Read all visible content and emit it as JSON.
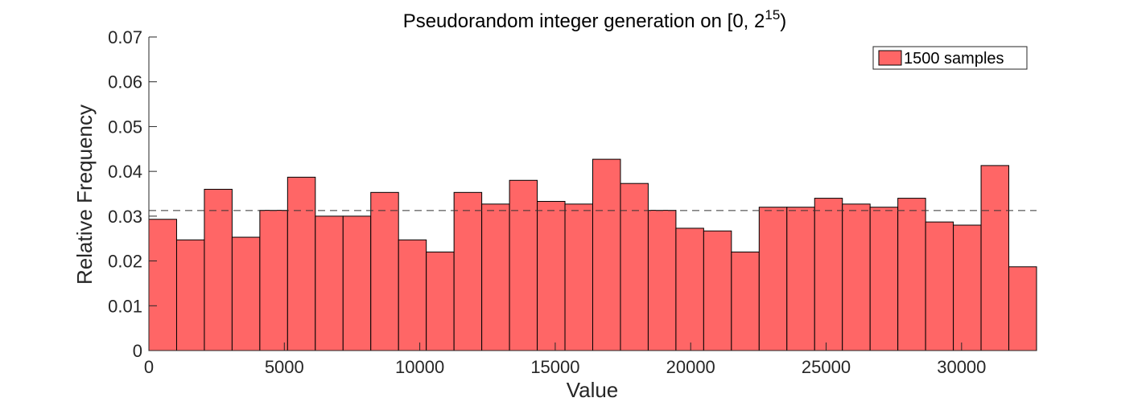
{
  "chart_data": {
    "type": "bar",
    "title": "Pseudorandom integer generation on [0, 2",
    "title_superscript": "15",
    "title_suffix": ")",
    "xlabel": "Value",
    "ylabel": "Relative Frequency",
    "xlim": [
      0,
      32768
    ],
    "ylim": [
      0,
      0.07
    ],
    "bin_width": 1024,
    "x_ticks": [
      0,
      5000,
      10000,
      15000,
      20000,
      25000,
      30000
    ],
    "y_ticks": [
      0,
      0.01,
      0.02,
      0.03,
      0.04,
      0.05,
      0.06,
      0.07
    ],
    "x_tick_labels": [
      "0",
      "5000",
      "10000",
      "15000",
      "20000",
      "25000",
      "30000"
    ],
    "y_tick_labels": [
      "0",
      "0.01",
      "0.02",
      "0.03",
      "0.04",
      "0.05",
      "0.06",
      "0.07"
    ],
    "reference_line": 0.03125,
    "grid": false,
    "legend_position": "top-right",
    "series": [
      {
        "name": "1500 samples",
        "color": "#ff6666",
        "values": [
          0.0293,
          0.0247,
          0.036,
          0.0253,
          0.0313,
          0.0387,
          0.03,
          0.03,
          0.0353,
          0.0247,
          0.022,
          0.0353,
          0.0327,
          0.038,
          0.0333,
          0.0327,
          0.0427,
          0.0373,
          0.0313,
          0.0273,
          0.0267,
          0.022,
          0.032,
          0.032,
          0.034,
          0.0327,
          0.032,
          0.034,
          0.0287,
          0.028,
          0.0413,
          0.0187
        ]
      }
    ]
  }
}
